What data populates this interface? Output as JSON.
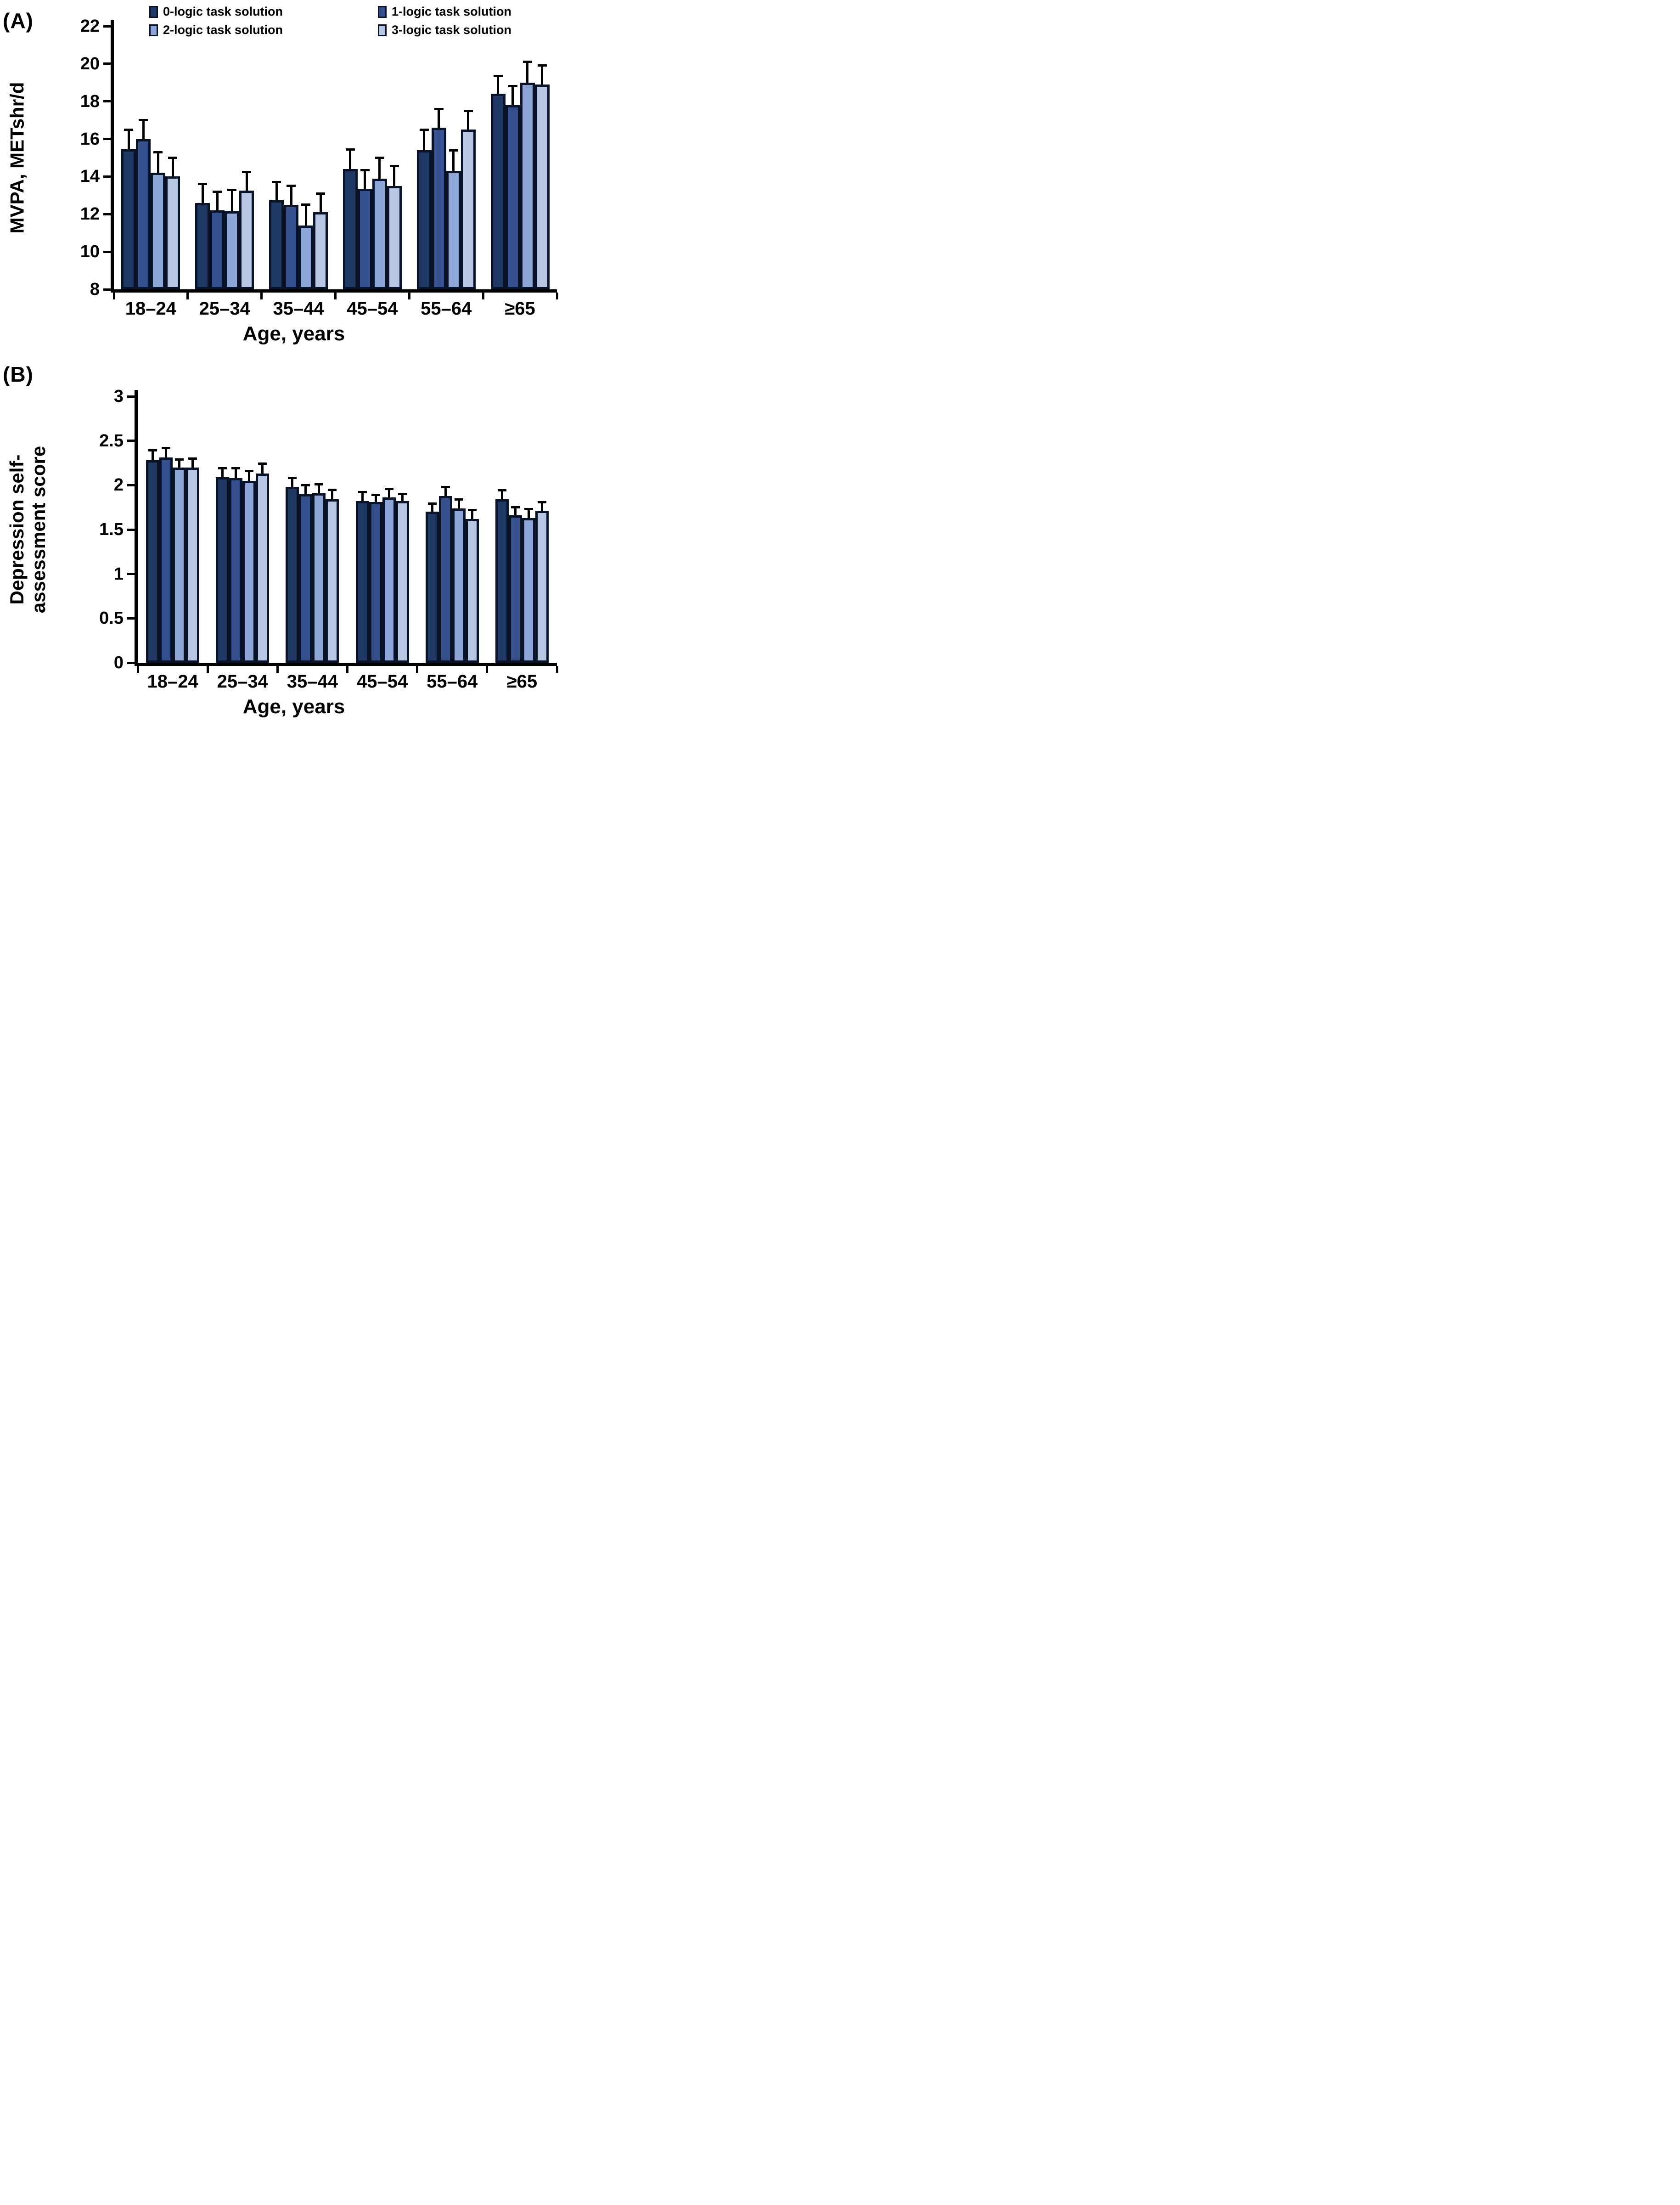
{
  "legend": {
    "items": [
      {
        "label": "0-logic task solution",
        "color": "#1f3864"
      },
      {
        "label": "1-logic task solution",
        "color": "#35508c"
      },
      {
        "label": "2-logic task solution",
        "color": "#8fa6d8"
      },
      {
        "label": "3-logic task solution",
        "color": "#b7c6e2"
      }
    ]
  },
  "colors": {
    "bar_outline": "#0a1428",
    "error_bar": "#000000",
    "axis": "#000000"
  },
  "chart_data": [
    {
      "type": "bar",
      "panel": "(A)",
      "ylabel": "MVPA, METshr/d",
      "xlabel": "Age, years",
      "ylim": [
        8,
        22
      ],
      "ytick_step": 2,
      "yticks": [
        "22",
        "20",
        "18",
        "16",
        "14",
        "12",
        "10",
        "8"
      ],
      "grid": false,
      "legend_position": "top",
      "error_bars": "upper only",
      "categories": [
        "18–24",
        "25–34",
        "35–44",
        "45–54",
        "55–64",
        "≥65"
      ],
      "series": [
        {
          "name": "0-logic task solution",
          "color": "#1f3864",
          "values": [
            15.45,
            12.6,
            12.75,
            14.4,
            15.4,
            18.4
          ],
          "errors": [
            1.05,
            1.0,
            0.95,
            1.05,
            1.1,
            0.95
          ]
        },
        {
          "name": "1-logic task solution",
          "color": "#35508c",
          "values": [
            16.0,
            12.2,
            12.5,
            13.35,
            16.6,
            17.8
          ],
          "errors": [
            1.0,
            1.0,
            1.0,
            1.0,
            1.0,
            1.0
          ]
        },
        {
          "name": "2-logic task solution",
          "color": "#8fa6d8",
          "values": [
            14.2,
            12.15,
            11.4,
            13.9,
            14.3,
            19.0
          ],
          "errors": [
            1.1,
            1.15,
            1.1,
            1.1,
            1.1,
            1.1
          ]
        },
        {
          "name": "3-logic task solution",
          "color": "#b7c6e2",
          "values": [
            14.0,
            13.25,
            12.1,
            13.5,
            16.5,
            18.9
          ],
          "errors": [
            1.0,
            1.0,
            1.0,
            1.05,
            1.0,
            1.0
          ]
        }
      ]
    },
    {
      "type": "bar",
      "panel": "(B)",
      "ylabel_lines": [
        "Depression self-",
        "assessment score"
      ],
      "xlabel": "Age, years",
      "ylim": [
        0,
        3
      ],
      "ytick_step": 0.5,
      "yticks": [
        "3",
        "2.5",
        "2",
        "1.5",
        "1",
        "0.5",
        "0"
      ],
      "grid": false,
      "error_bars": "upper only",
      "categories": [
        "18–24",
        "25–34",
        "35–44",
        "45–54",
        "55–64",
        "≥65"
      ],
      "series": [
        {
          "name": "0-logic task solution",
          "color": "#1f3864",
          "values": [
            2.28,
            2.09,
            1.98,
            1.82,
            1.7,
            1.84
          ],
          "errors": [
            0.11,
            0.1,
            0.1,
            0.1,
            0.09,
            0.1
          ]
        },
        {
          "name": "1-logic task solution",
          "color": "#35508c",
          "values": [
            2.31,
            2.08,
            1.9,
            1.81,
            1.88,
            1.66
          ],
          "errors": [
            0.11,
            0.11,
            0.1,
            0.08,
            0.1,
            0.09
          ]
        },
        {
          "name": "2-logic task solution",
          "color": "#8fa6d8",
          "values": [
            2.2,
            2.05,
            1.91,
            1.86,
            1.74,
            1.63
          ],
          "errors": [
            0.09,
            0.11,
            0.1,
            0.1,
            0.1,
            0.1
          ]
        },
        {
          "name": "3-logic task solution",
          "color": "#b7c6e2",
          "values": [
            2.2,
            2.13,
            1.84,
            1.82,
            1.62,
            1.71
          ],
          "errors": [
            0.1,
            0.11,
            0.11,
            0.08,
            0.1,
            0.1
          ]
        }
      ]
    }
  ]
}
